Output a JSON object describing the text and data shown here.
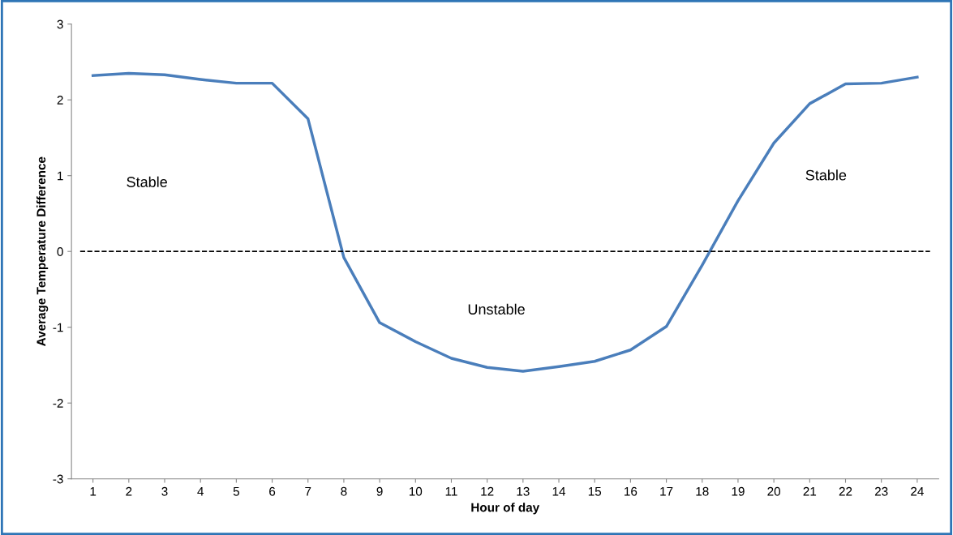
{
  "chart_data": {
    "type": "line",
    "xlabel": "Hour of day",
    "ylabel": "Average Temperature Difference",
    "categories": [
      "1",
      "2",
      "3",
      "4",
      "5",
      "6",
      "7",
      "8",
      "9",
      "10",
      "11",
      "12",
      "13",
      "14",
      "15",
      "16",
      "17",
      "18",
      "19",
      "20",
      "21",
      "22",
      "23",
      "24"
    ],
    "series": [
      {
        "color": "#4a7ebb",
        "values": [
          2.32,
          2.35,
          2.33,
          2.27,
          2.22,
          2.22,
          1.75,
          -0.08,
          -0.94,
          -1.19,
          -1.41,
          -1.53,
          -1.58,
          -1.52,
          -1.45,
          -1.3,
          -0.99,
          -0.18,
          0.67,
          1.43,
          1.95,
          2.21,
          2.22,
          2.3
        ]
      }
    ],
    "ylim": [
      -3,
      3
    ],
    "yticks": [
      -3,
      -2,
      -1,
      0,
      1,
      2,
      3
    ],
    "ref_lines": [
      {
        "axis": "y",
        "value": 0,
        "color": "#000000",
        "line_style": "dashed"
      }
    ],
    "annotations": [
      "Stable",
      "Unstable",
      "Stable"
    ],
    "grid": false,
    "legend": false,
    "marker": "none",
    "line_style": "solid"
  }
}
